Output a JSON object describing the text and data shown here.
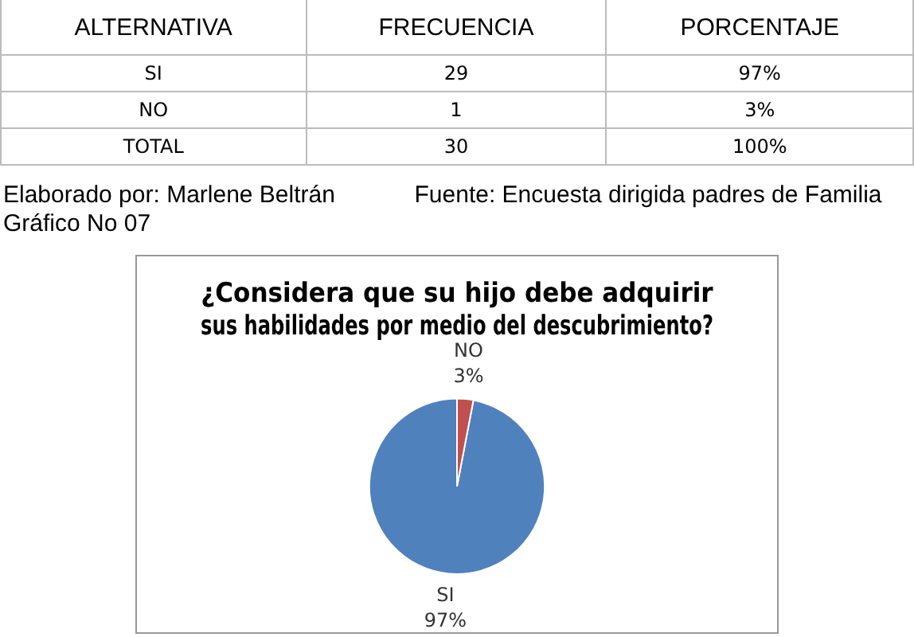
{
  "chart_data": {
    "type": "pie",
    "title": "¿Considera que su hijo debe adquirir sus habilidades por medio del descubrimiento?",
    "categories": [
      "SI",
      "NO"
    ],
    "values": [
      97,
      3
    ],
    "colors": [
      "#4f81bd",
      "#c0504d"
    ],
    "value_labels": [
      "97%",
      "3%"
    ],
    "legend": false,
    "annotations": [
      "ALTERNATIVA",
      "FRECUENCIA",
      "PORCENTAJE",
      "SI",
      "29",
      "97%",
      "NO",
      "1",
      "3%",
      "TOTAL",
      "30",
      "100%",
      "Elaborado por: Marlene Beltrán",
      "Fuente: Encuesta dirigida padres de Familia",
      "Gráfico No 07"
    ]
  }
}
